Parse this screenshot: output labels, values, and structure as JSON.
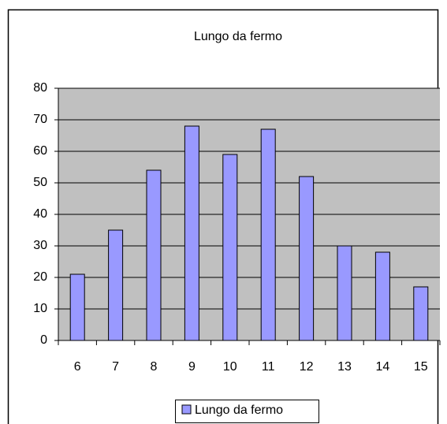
{
  "chart_data": {
    "type": "bar",
    "title": "Lungo da fermo",
    "categories": [
      "6",
      "7",
      "8",
      "9",
      "10",
      "11",
      "12",
      "13",
      "14",
      "15"
    ],
    "series": [
      {
        "name": "Lungo da fermo",
        "color": "#9999ff",
        "values": [
          21,
          35,
          54,
          68,
          59,
          67,
          52,
          30,
          28,
          17
        ]
      }
    ],
    "ylim": [
      0,
      80
    ],
    "yticks": [
      0,
      10,
      20,
      30,
      40,
      50,
      60,
      70,
      80
    ],
    "grid": true,
    "legend": "bottom"
  }
}
